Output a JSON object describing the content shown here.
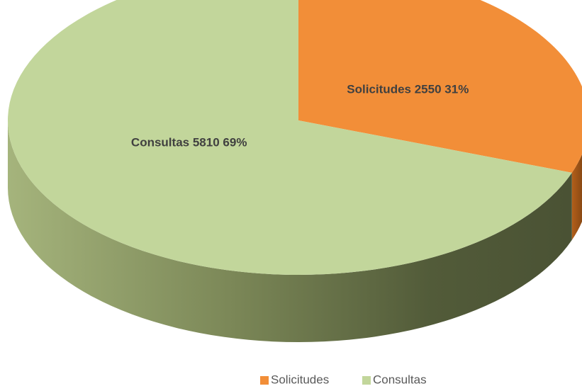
{
  "chart_data": {
    "type": "pie",
    "categories": [
      "Solicitudes",
      "Consultas"
    ],
    "values": [
      2550,
      5810
    ],
    "percents": [
      31,
      69
    ],
    "colors": [
      "#f28e38",
      "#c2d69b"
    ],
    "legend": "bottom"
  }
}
